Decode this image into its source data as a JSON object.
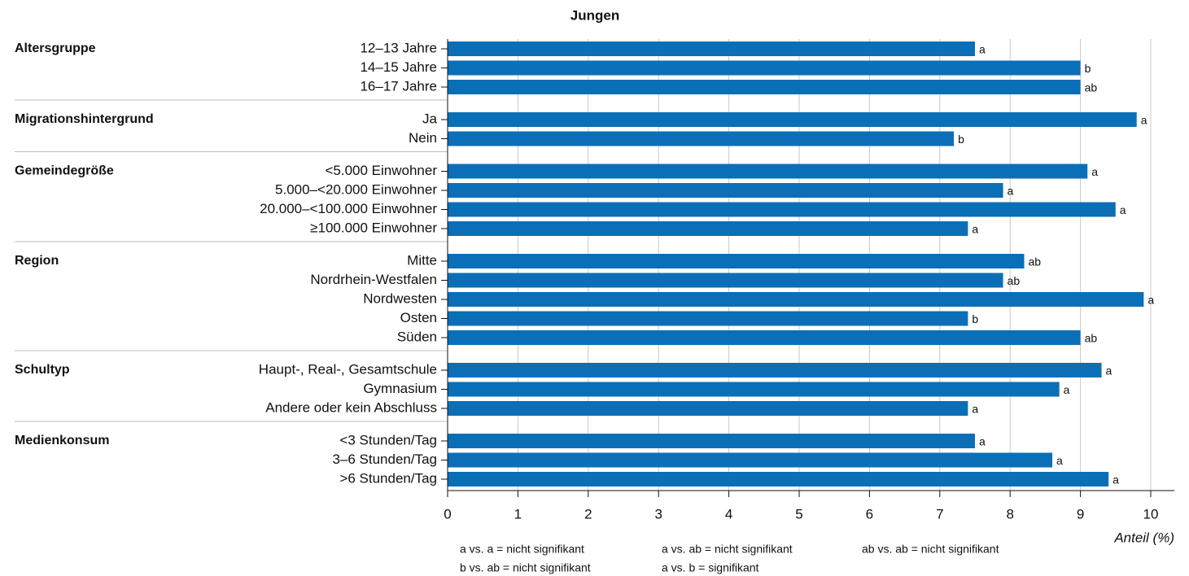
{
  "chart_data": {
    "type": "bar",
    "orientation": "horizontal",
    "title": "Jungen",
    "xlabel": "Anteil (%)",
    "color": "#0a6fb7",
    "grid": true,
    "xlim": [
      0,
      10
    ],
    "xticks": [
      0,
      1,
      2,
      3,
      4,
      5,
      6,
      7,
      8,
      9,
      10
    ],
    "groups": [
      {
        "name": "Altersgruppe",
        "categories": [
          "12–13 Jahre",
          "14–15 Jahre",
          "16–17 Jahre"
        ],
        "values": [
          7.5,
          9.0,
          9.0
        ],
        "annotations": [
          "a",
          "b",
          "ab"
        ]
      },
      {
        "name": "Migrationshintergrund",
        "categories": [
          "Ja",
          "Nein"
        ],
        "values": [
          9.8,
          7.2
        ],
        "annotations": [
          "a",
          "b"
        ]
      },
      {
        "name": "Gemeindegröße",
        "categories": [
          "<5.000 Einwohner",
          "5.000–<20.000 Einwohner",
          "20.000–<100.000 Einwohner",
          "≥100.000 Einwohner"
        ],
        "values": [
          9.1,
          7.9,
          9.5,
          7.4
        ],
        "annotations": [
          "a",
          "a",
          "a",
          "a"
        ]
      },
      {
        "name": "Region",
        "categories": [
          "Mitte",
          "Nordrhein-Westfalen",
          "Nordwesten",
          "Osten",
          "Süden"
        ],
        "values": [
          8.2,
          7.9,
          9.9,
          7.4,
          9.0
        ],
        "annotations": [
          "ab",
          "ab",
          "a",
          "b",
          "ab"
        ]
      },
      {
        "name": "Schultyp",
        "categories": [
          "Haupt-, Real-, Gesamtschule",
          "Gymnasium",
          "Andere oder kein Abschluss"
        ],
        "values": [
          9.3,
          8.7,
          7.4
        ],
        "annotations": [
          "a",
          "a",
          "a"
        ]
      },
      {
        "name": "Medienkonsum",
        "categories": [
          "<3 Stunden/Tag",
          "3–6 Stunden/Tag",
          ">6 Stunden/Tag"
        ],
        "values": [
          7.5,
          8.6,
          9.4
        ],
        "annotations": [
          "a",
          "a",
          "a"
        ]
      }
    ],
    "footnotes": [
      "a vs. a = nicht signifikant",
      "a vs. ab = nicht signifikant",
      "ab vs. ab = nicht signifikant",
      "b vs. ab = nicht signifikant",
      "a vs. b = signifikant"
    ]
  }
}
